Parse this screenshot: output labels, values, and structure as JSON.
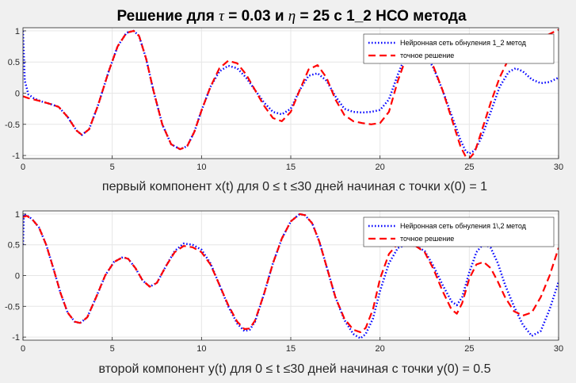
{
  "title": {
    "prefix": "Решение для ",
    "tau_symbol": "τ",
    "tau_part": " = 0.03 и ",
    "eta_symbol": "η",
    "suffix": " = 25 с 1_2 НСО метода"
  },
  "colors": {
    "network": "#0000ff",
    "exact": "#ff0000",
    "grid": "#e6e6e6",
    "axes_bg": "#ffffff",
    "figure_bg": "#f0f0f0"
  },
  "chart_data": [
    {
      "type": "line",
      "xlabel": "первый компонент x(t)  для 0 ≤ t ≤30 дней начиная с точки x(0) = 1",
      "xlim": [
        0,
        30
      ],
      "ylim": [
        -1.05,
        1.05
      ],
      "xticks": [
        0,
        5,
        10,
        15,
        20,
        25,
        30
      ],
      "yticks": [
        -1,
        -0.5,
        0,
        0.5,
        1
      ],
      "grid": true,
      "legend_position": "top-right",
      "series": [
        {
          "name": "Нейронная сеть обнуления 1_2 метод",
          "style": "dotted",
          "color": "#0000ff",
          "x": [
            0,
            0.1,
            0.3,
            0.6,
            1.0,
            1.5,
            2.0,
            2.5,
            3.0,
            3.3,
            3.7,
            4.2,
            4.8,
            5.3,
            5.8,
            6.2,
            6.5,
            6.9,
            7.3,
            7.8,
            8.3,
            8.8,
            9.2,
            9.6,
            10.0,
            10.5,
            11.0,
            11.5,
            12.0,
            12.5,
            13.0,
            13.5,
            14.0,
            14.5,
            15.0,
            15.5,
            16.0,
            16.5,
            17.0,
            17.5,
            18.0,
            18.5,
            19.0,
            19.5,
            20.0,
            20.5,
            21.0,
            21.5,
            22.0,
            22.5,
            23.0,
            23.5,
            24.0,
            24.5,
            24.8,
            25.0,
            25.3,
            25.7,
            26.2,
            26.7,
            27.2,
            27.6,
            28.0,
            28.5,
            29.0,
            29.5,
            30.0
          ],
          "y": [
            1.0,
            0.2,
            -0.02,
            -0.08,
            -0.13,
            -0.17,
            -0.22,
            -0.38,
            -0.6,
            -0.67,
            -0.58,
            -0.2,
            0.35,
            0.75,
            0.97,
            1.0,
            0.92,
            0.55,
            0.05,
            -0.5,
            -0.82,
            -0.9,
            -0.85,
            -0.62,
            -0.28,
            0.1,
            0.35,
            0.44,
            0.4,
            0.25,
            0.05,
            -0.15,
            -0.3,
            -0.34,
            -0.25,
            0.05,
            0.28,
            0.32,
            0.2,
            -0.05,
            -0.25,
            -0.3,
            -0.31,
            -0.3,
            -0.27,
            -0.1,
            0.3,
            0.65,
            0.72,
            0.65,
            0.4,
            0.05,
            -0.35,
            -0.75,
            -0.93,
            -0.97,
            -0.92,
            -0.7,
            -0.3,
            0.1,
            0.34,
            0.4,
            0.35,
            0.22,
            0.16,
            0.18,
            0.25
          ]
        },
        {
          "name": "точное решение",
          "style": "dashed",
          "color": "#ff0000",
          "x": [
            0,
            0.3,
            0.6,
            1.0,
            1.5,
            2.0,
            2.5,
            3.0,
            3.3,
            3.7,
            4.2,
            4.8,
            5.3,
            5.8,
            6.2,
            6.5,
            6.9,
            7.3,
            7.8,
            8.3,
            8.8,
            9.2,
            9.6,
            10.0,
            10.5,
            11.0,
            11.5,
            12.0,
            12.5,
            13.0,
            13.5,
            14.0,
            14.5,
            15.0,
            15.5,
            16.0,
            16.5,
            17.0,
            17.5,
            18.0,
            18.5,
            19.0,
            19.5,
            20.0,
            20.5,
            21.0,
            21.5,
            22.0,
            22.5,
            23.0,
            23.5,
            24.0,
            24.5,
            24.8,
            25.0,
            25.3,
            25.7,
            26.2,
            26.7,
            27.2,
            27.6,
            28.0,
            28.5,
            29.0,
            29.5,
            30.0
          ],
          "y": [
            -0.05,
            -0.08,
            -0.1,
            -0.13,
            -0.17,
            -0.22,
            -0.38,
            -0.6,
            -0.67,
            -0.58,
            -0.2,
            0.35,
            0.75,
            0.97,
            1.0,
            0.92,
            0.55,
            0.05,
            -0.5,
            -0.82,
            -0.9,
            -0.85,
            -0.62,
            -0.28,
            0.1,
            0.4,
            0.52,
            0.48,
            0.3,
            0.05,
            -0.2,
            -0.4,
            -0.45,
            -0.3,
            0.05,
            0.38,
            0.45,
            0.25,
            -0.1,
            -0.35,
            -0.45,
            -0.48,
            -0.5,
            -0.48,
            -0.3,
            0.2,
            0.6,
            0.72,
            0.65,
            0.42,
            0.05,
            -0.4,
            -0.85,
            -1.02,
            -1.05,
            -0.95,
            -0.6,
            -0.15,
            0.25,
            0.55,
            0.7,
            0.78,
            0.82,
            0.88,
            0.95,
            1.02
          ]
        }
      ]
    },
    {
      "type": "line",
      "xlabel": "второй компонент y(t) для 0 ≤ t ≤30 дней начиная с точки y(0) = 0.5",
      "xlim": [
        0,
        30
      ],
      "ylim": [
        -1.05,
        1.05
      ],
      "xticks": [
        0,
        5,
        10,
        15,
        20,
        25,
        30
      ],
      "yticks": [
        -1,
        -0.5,
        0,
        0.5,
        1
      ],
      "grid": true,
      "legend_position": "top-right",
      "series": [
        {
          "name": "Нейронная сеть обнуления 1\\,2 метод",
          "style": "dotted",
          "color": "#0000ff",
          "x": [
            0,
            0.05,
            0.2,
            0.5,
            0.9,
            1.3,
            1.7,
            2.1,
            2.5,
            2.9,
            3.2,
            3.6,
            4.1,
            4.6,
            5.1,
            5.6,
            5.9,
            6.3,
            6.7,
            7.1,
            7.5,
            8.0,
            8.5,
            9.0,
            9.5,
            10.0,
            10.5,
            11.0,
            11.5,
            12.0,
            12.4,
            12.7,
            13.0,
            13.5,
            14.0,
            14.5,
            15.0,
            15.5,
            15.8,
            16.2,
            16.6,
            17.0,
            17.5,
            18.0,
            18.5,
            18.9,
            19.2,
            19.6,
            20.0,
            20.5,
            21.0,
            21.5,
            22.0,
            22.5,
            23.0,
            23.5,
            24.0,
            24.3,
            24.6,
            25.0,
            25.4,
            25.8,
            26.2,
            26.6,
            27.0,
            27.5,
            28.0,
            28.5,
            29.0,
            29.5,
            30.0
          ],
          "y": [
            0.5,
            1.0,
            0.98,
            0.92,
            0.78,
            0.5,
            0.12,
            -0.28,
            -0.6,
            -0.75,
            -0.77,
            -0.68,
            -0.35,
            0.0,
            0.22,
            0.3,
            0.27,
            0.12,
            -0.08,
            -0.18,
            -0.12,
            0.15,
            0.4,
            0.52,
            0.5,
            0.42,
            0.2,
            -0.15,
            -0.5,
            -0.78,
            -0.9,
            -0.88,
            -0.75,
            -0.3,
            0.2,
            0.6,
            0.88,
            1.0,
            0.98,
            0.85,
            0.55,
            0.15,
            -0.35,
            -0.72,
            -0.95,
            -1.02,
            -0.95,
            -0.7,
            -0.25,
            0.2,
            0.45,
            0.5,
            0.48,
            0.4,
            0.15,
            -0.15,
            -0.42,
            -0.48,
            -0.35,
            0.05,
            0.38,
            0.52,
            0.45,
            0.2,
            -0.15,
            -0.5,
            -0.8,
            -0.98,
            -0.9,
            -0.55,
            -0.1
          ]
        },
        {
          "name": "точное решение",
          "style": "dashed",
          "color": "#ff0000",
          "x": [
            0,
            0.2,
            0.5,
            0.9,
            1.3,
            1.7,
            2.1,
            2.5,
            2.9,
            3.2,
            3.6,
            4.1,
            4.6,
            5.1,
            5.6,
            5.9,
            6.3,
            6.7,
            7.1,
            7.5,
            8.0,
            8.5,
            9.0,
            9.5,
            10.0,
            10.5,
            11.0,
            11.5,
            12.0,
            12.4,
            12.7,
            13.0,
            13.5,
            14.0,
            14.5,
            15.0,
            15.5,
            15.8,
            16.2,
            16.6,
            17.0,
            17.5,
            18.0,
            18.5,
            18.9,
            19.2,
            19.6,
            20.0,
            20.5,
            21.0,
            21.5,
            22.0,
            22.5,
            23.0,
            23.5,
            24.0,
            24.3,
            24.6,
            25.0,
            25.4,
            25.8,
            26.2,
            26.6,
            27.0,
            27.5,
            28.0,
            28.5,
            29.0,
            29.5,
            30.0
          ],
          "y": [
            0.95,
            0.97,
            0.92,
            0.78,
            0.5,
            0.12,
            -0.28,
            -0.6,
            -0.75,
            -0.77,
            -0.68,
            -0.35,
            0.0,
            0.22,
            0.3,
            0.27,
            0.12,
            -0.08,
            -0.18,
            -0.12,
            0.15,
            0.38,
            0.48,
            0.46,
            0.38,
            0.18,
            -0.15,
            -0.48,
            -0.75,
            -0.87,
            -0.86,
            -0.73,
            -0.3,
            0.2,
            0.6,
            0.88,
            1.0,
            0.98,
            0.85,
            0.55,
            0.15,
            -0.35,
            -0.7,
            -0.88,
            -0.92,
            -0.85,
            -0.55,
            -0.05,
            0.35,
            0.52,
            0.5,
            0.48,
            0.38,
            0.1,
            -0.25,
            -0.55,
            -0.62,
            -0.45,
            -0.05,
            0.18,
            0.22,
            0.12,
            -0.1,
            -0.35,
            -0.58,
            -0.65,
            -0.6,
            -0.35,
            0.0,
            0.45
          ]
        }
      ]
    }
  ]
}
